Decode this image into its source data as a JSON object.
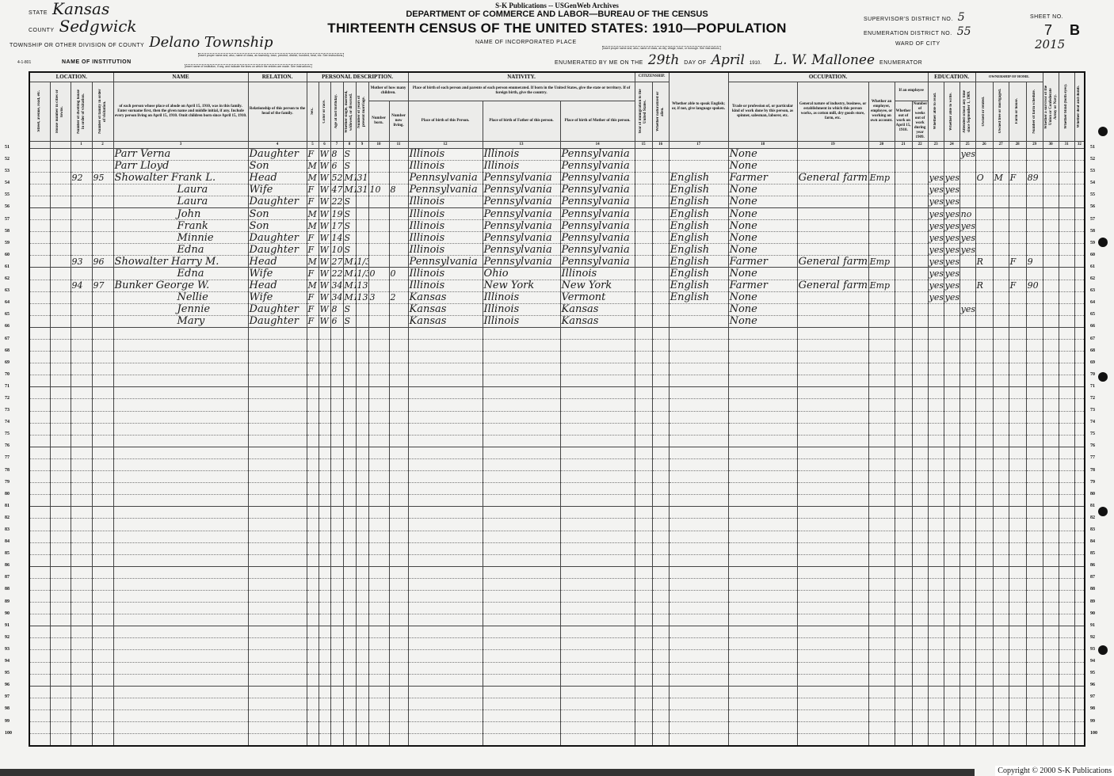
{
  "publisher": "S-K Publications -- USGenWeb Archives",
  "department": "DEPARTMENT OF COMMERCE AND LABOR—BUREAU OF THE CENSUS",
  "title": "THIRTEENTH CENSUS OF THE UNITED STATES: 1910—POPULATION",
  "form": {
    "state_label": "State",
    "state": "Kansas",
    "county_label": "County",
    "county": "Sedgwick",
    "township_label": "Township or other division of county",
    "township": "Delano Township",
    "township_note": "[Insert proper name and, also, name of class, as township, town, precinct, district, hundred, beat, etc. See instructions.]",
    "institution_label": "Name of institution",
    "institution_note": "[Insert name of institution, if any, and indicate the lines on which the entries are made. See instructions.]",
    "form_code": "4-1-801",
    "place_label": "Name of incorporated place",
    "place_note": "[Insert proper name and, also, name of class, as city, village, town, or borough. See instructions.]",
    "enumerated_label": "Enumerated by me on the",
    "day": "29th",
    "day_of_label": "day of",
    "month": "April",
    "year": "1910.",
    "enumerator": "L. W. Mallonee",
    "enumerator_label": "Enumerator",
    "supervisor_label": "Supervisor's District No.",
    "supervisor": "5",
    "enumeration_label": "Enumeration District No.",
    "enumeration": "55",
    "sheet_label": "Sheet No.",
    "sheet": "7",
    "sheet_side": "B",
    "ward_label": "Ward of city",
    "ward_note": "2015"
  },
  "headers": {
    "location": "LOCATION.",
    "name": "NAME",
    "relation": "RELATION.",
    "personal": "PERSONAL DESCRIPTION.",
    "nativity": "NATIVITY.",
    "citizenship": "CITIZENSHIP.",
    "occupation": "OCCUPATION.",
    "education": "EDUCATION.",
    "ownership": "OWNERSHIP OF HOME.",
    "street": "Street, avenue, road, etc.",
    "house": "House number in cities or towns.",
    "dwelling": "Number of dwelling house in order of visitation.",
    "family": "Number of family in order of visitation.",
    "name_text": "of each person whose place of abode on April 15, 1910, was in this family. Enter surname first, then the given name and middle initial, if any. Include every person living on April 15, 1910. Omit children born since April 15, 1910.",
    "relation_text": "Relationship of this person to the head of the family.",
    "sex": "Sex.",
    "color": "Color or race.",
    "age": "Age at last birthday.",
    "marital": "Whether single, married, widowed, or divorced.",
    "years_married": "Number of years of present marriage.",
    "mother_of": "Mother of how many children.",
    "born": "Number born.",
    "living": "Number now living.",
    "nativity_text": "Place of birth of each person and parents of each person enumerated. If born in the United States, give the state or territory. If of foreign birth, give the country.",
    "birth_person": "Place of birth of this Person.",
    "birth_father": "Place of birth of Father of this person.",
    "birth_mother": "Place of birth of Mother of this person.",
    "immigration": "Year of immigration to the United States.",
    "naturalized": "Whether naturalized or alien.",
    "language": "Whether able to speak English; or, if not, give language spoken.",
    "trade": "Trade or profession of, or particular kind of work done by this person, as spinner, salesman, laborer, etc.",
    "industry": "General nature of industry, business, or establishment in which this person works, as cotton mill, dry goods store, farm, etc.",
    "employer": "Whether an employer, employee, or working on own account.",
    "if_employee": "If an employee",
    "out_of_work": "Whether out of work on April 15, 1910.",
    "weeks_out": "Number of weeks out of work during year 1909.",
    "read": "Whether able to read.",
    "write": "Whether able to write.",
    "school": "Attended school any time since September 1, 1909.",
    "owned": "Owned or rented.",
    "free": "Owned free or mortgaged.",
    "farm": "Farm or house.",
    "schedule": "Number of farm schedule.",
    "veteran": "Whether a survivor of the Union or Confederate Army or Navy.",
    "blind": "Whether blind (both eyes).",
    "deaf": "Whether deaf and dumb.",
    "numbers": [
      "",
      "",
      "1",
      "2",
      "3",
      "4",
      "5",
      "6",
      "7",
      "8",
      "9",
      "10",
      "11",
      "12",
      "13",
      "14",
      "15",
      "16",
      "17",
      "18",
      "19",
      "20",
      "21",
      "22",
      "23",
      "24",
      "25",
      "26",
      "27",
      "28",
      "29",
      "30",
      "31",
      "32"
    ]
  },
  "rows": [
    {
      "line": "51",
      "name": "Parr Verna",
      "relation": "Daughter",
      "sex": "F",
      "color": "W",
      "age": "8",
      "marital": "S",
      "birth": "Illinois",
      "father": "Illinois",
      "mother": "Pennsylvania",
      "trade": "None",
      "school": "yes"
    },
    {
      "line": "52",
      "name": "Parr Lloyd",
      "relation": "Son",
      "sex": "M",
      "color": "W",
      "age": "6",
      "marital": "S",
      "birth": "Illinois",
      "father": "Illinois",
      "mother": "Pennsylvania",
      "trade": "None"
    },
    {
      "line": "53",
      "dwelling": "92",
      "family": "95",
      "name": "Showalter Frank L.",
      "relation": "Head",
      "sex": "M",
      "color": "W",
      "age": "52",
      "marital": "M1",
      "years": "31",
      "birth": "Pennsylvania",
      "father": "Pennsylvania",
      "mother": "Pennsylvania",
      "language": "English",
      "trade": "Farmer",
      "industry": "General farm",
      "employer": "Emp",
      "read": "yes",
      "write": "yes",
      "owned": "O",
      "free": "M",
      "farm": "F",
      "schedule": "89"
    },
    {
      "line": "54",
      "name": "Laura",
      "relation": "Wife",
      "sex": "F",
      "color": "W",
      "age": "47",
      "marital": "M1",
      "years": "31",
      "born": "10",
      "living": "8",
      "birth": "Pennsylvania",
      "father": "Pennsylvania",
      "mother": "Pennsylvania",
      "language": "English",
      "trade": "None",
      "read": "yes",
      "write": "yes"
    },
    {
      "line": "55",
      "name": "Laura",
      "relation": "Daughter",
      "sex": "F",
      "color": "W",
      "age": "22",
      "marital": "S",
      "birth": "Illinois",
      "father": "Pennsylvania",
      "mother": "Pennsylvania",
      "language": "English",
      "trade": "None",
      "read": "yes",
      "write": "yes"
    },
    {
      "line": "56",
      "name": "John",
      "relation": "Son",
      "sex": "M",
      "color": "W",
      "age": "19",
      "marital": "S",
      "birth": "Illinois",
      "father": "Pennsylvania",
      "mother": "Pennsylvania",
      "language": "English",
      "trade": "None",
      "read": "yes",
      "write": "yes",
      "school": "no"
    },
    {
      "line": "57",
      "name": "Frank",
      "relation": "Son",
      "sex": "M",
      "color": "W",
      "age": "17",
      "marital": "S",
      "birth": "Illinois",
      "father": "Pennsylvania",
      "mother": "Pennsylvania",
      "language": "English",
      "trade": "None",
      "read": "yes",
      "write": "yes",
      "school": "yes"
    },
    {
      "line": "58",
      "name": "Minnie",
      "relation": "Daughter",
      "sex": "F",
      "color": "W",
      "age": "14",
      "marital": "S",
      "birth": "Illinois",
      "father": "Pennsylvania",
      "mother": "Pennsylvania",
      "language": "English",
      "trade": "None",
      "read": "yes",
      "write": "yes",
      "school": "yes"
    },
    {
      "line": "59",
      "name": "Edna",
      "relation": "Daughter",
      "sex": "F",
      "color": "W",
      "age": "10",
      "marital": "S",
      "birth": "Illinois",
      "father": "Pennsylvania",
      "mother": "Pennsylvania",
      "language": "English",
      "trade": "None",
      "read": "yes",
      "write": "yes",
      "school": "yes"
    },
    {
      "line": "60",
      "dwelling": "93",
      "family": "96",
      "name": "Showalter Harry M.",
      "relation": "Head",
      "sex": "M",
      "color": "W",
      "age": "27",
      "marital": "M1",
      "years": "1/3",
      "birth": "Pennsylvania",
      "father": "Pennsylvania",
      "mother": "Pennsylvania",
      "language": "English",
      "trade": "Farmer",
      "industry": "General farm",
      "employer": "Emp",
      "read": "yes",
      "write": "yes",
      "owned": "R",
      "farm": "F",
      "schedule": "9"
    },
    {
      "line": "61",
      "name": "Edna",
      "relation": "Wife",
      "sex": "F",
      "color": "W",
      "age": "22",
      "marital": "M1",
      "years": "1/3",
      "born": "0",
      "living": "0",
      "birth": "Illinois",
      "father": "Ohio",
      "mother": "Illinois",
      "language": "English",
      "trade": "None",
      "read": "yes",
      "write": "yes"
    },
    {
      "line": "62",
      "dwelling": "94",
      "family": "97",
      "name": "Bunker George W.",
      "relation": "Head",
      "sex": "M",
      "color": "W",
      "age": "34",
      "marital": "M1",
      "years": "13",
      "birth": "Illinois",
      "father": "New York",
      "mother": "New York",
      "language": "English",
      "trade": "Farmer",
      "industry": "General farm",
      "employer": "Emp",
      "read": "yes",
      "write": "yes",
      "owned": "R",
      "farm": "F",
      "schedule": "90"
    },
    {
      "line": "63",
      "name": "Nellie",
      "relation": "Wife",
      "sex": "F",
      "color": "W",
      "age": "34",
      "marital": "M1",
      "years": "13",
      "born": "3",
      "living": "2",
      "birth": "Kansas",
      "father": "Illinois",
      "mother": "Vermont",
      "language": "English",
      "trade": "None",
      "read": "yes",
      "write": "yes"
    },
    {
      "line": "64",
      "name": "Jennie",
      "relation": "Daughter",
      "sex": "F",
      "color": "W",
      "age": "8",
      "marital": "S",
      "birth": "Kansas",
      "father": "Illinois",
      "mother": "Kansas",
      "trade": "None",
      "school": "yes"
    },
    {
      "line": "65",
      "name": "Mary",
      "relation": "Daughter",
      "sex": "F",
      "color": "W",
      "age": "6",
      "marital": "S",
      "birth": "Kansas",
      "father": "Illinois",
      "mother": "Kansas",
      "trade": "None"
    }
  ],
  "line_numbers": [
    "51",
    "52",
    "53",
    "54",
    "55",
    "56",
    "57",
    "58",
    "59",
    "60",
    "61",
    "62",
    "63",
    "64",
    "65",
    "66",
    "67",
    "68",
    "69",
    "70",
    "71",
    "72",
    "73",
    "74",
    "75",
    "76",
    "77",
    "78",
    "79",
    "80",
    "81",
    "82",
    "83",
    "84",
    "85",
    "86",
    "87",
    "88",
    "89",
    "90",
    "91",
    "92",
    "93",
    "94",
    "95",
    "96",
    "97",
    "98",
    "99",
    "100"
  ],
  "copyright": "Copyright © 2000 S-K Publications"
}
